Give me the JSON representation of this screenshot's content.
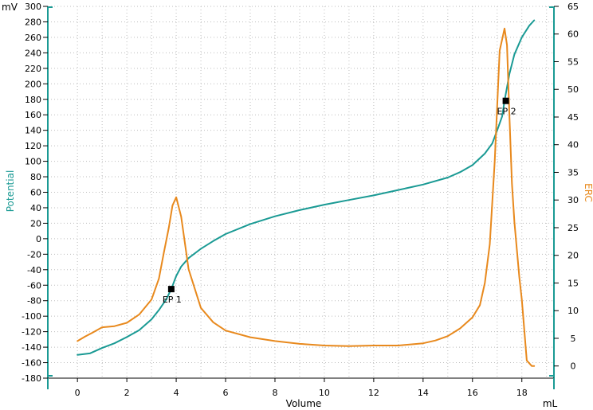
{
  "chart_data": {
    "type": "line",
    "xlabel": "Volume",
    "xunit": "mL",
    "ylabel_left": "Potential",
    "yunit_left": "mV",
    "ylabel_right": "ERC",
    "xlim": [
      -1.2,
      19.3
    ],
    "ylim_left": [
      -180,
      300
    ],
    "ylim_right": [
      -2.2,
      65
    ],
    "x_ticks": [
      0,
      2,
      4,
      6,
      8,
      10,
      12,
      14,
      16,
      18
    ],
    "y_left_ticks": [
      -180,
      -160,
      -140,
      -120,
      -100,
      -80,
      -60,
      -40,
      -20,
      0,
      20,
      40,
      60,
      80,
      100,
      120,
      140,
      160,
      180,
      200,
      220,
      240,
      260,
      280,
      300
    ],
    "y_right_ticks": [
      0,
      5,
      10,
      15,
      20,
      25,
      30,
      35,
      40,
      45,
      50,
      55,
      60,
      65
    ],
    "grid": true,
    "colors": {
      "potential": "#1a9a94",
      "erc": "#e8891d",
      "grid": "#bdbdbd",
      "endpoint": "#000000"
    },
    "series": [
      {
        "name": "Potential",
        "axis": "left",
        "x": [
          0,
          0.5,
          1,
          1.5,
          2,
          2.5,
          3,
          3.3,
          3.6,
          3.8,
          4,
          4.2,
          4.5,
          5,
          5.5,
          6,
          7,
          8,
          9,
          10,
          11,
          12,
          13,
          14,
          15,
          15.5,
          16,
          16.5,
          16.8,
          17,
          17.2,
          17.3,
          17.5,
          17.7,
          18,
          18.3,
          18.5
        ],
        "values": [
          -150,
          -148,
          -141,
          -135,
          -127,
          -118,
          -104,
          -92,
          -78,
          -65,
          -48,
          -36,
          -25,
          -13,
          -3,
          6,
          19,
          29,
          37,
          44,
          50,
          56,
          63,
          70,
          79,
          86,
          95,
          110,
          123,
          140,
          158,
          178,
          213,
          238,
          260,
          275,
          282
        ]
      },
      {
        "name": "ERC",
        "axis": "right",
        "x": [
          0,
          0.3,
          0.6,
          1,
          1.5,
          2,
          2.5,
          3,
          3.3,
          3.5,
          3.7,
          3.85,
          4,
          4.2,
          4.5,
          5,
          5.5,
          6,
          7,
          8,
          9,
          10,
          11,
          12,
          13,
          14,
          14.5,
          15,
          15.5,
          16,
          16.3,
          16.5,
          16.7,
          16.9,
          17.1,
          17.3,
          17.4,
          17.5,
          17.6,
          17.7,
          17.8,
          17.9,
          18,
          18.2,
          18.4,
          18.5
        ],
        "values": [
          4.5,
          5.3,
          6,
          7,
          7.2,
          7.8,
          9.3,
          12,
          15.8,
          20.5,
          25,
          29,
          30.5,
          27,
          17.5,
          10.5,
          7.9,
          6.4,
          5.2,
          4.5,
          4,
          3.7,
          3.6,
          3.7,
          3.7,
          4.1,
          4.6,
          5.4,
          6.8,
          8.8,
          11,
          15,
          22,
          37,
          57,
          61,
          58,
          45,
          33,
          26,
          21,
          16,
          12,
          1,
          0,
          0
        ]
      }
    ],
    "endpoints": [
      {
        "label": "EP 1",
        "x": 3.8,
        "y": -65
      },
      {
        "label": "EP 2",
        "x": 17.35,
        "y": 178
      }
    ]
  }
}
